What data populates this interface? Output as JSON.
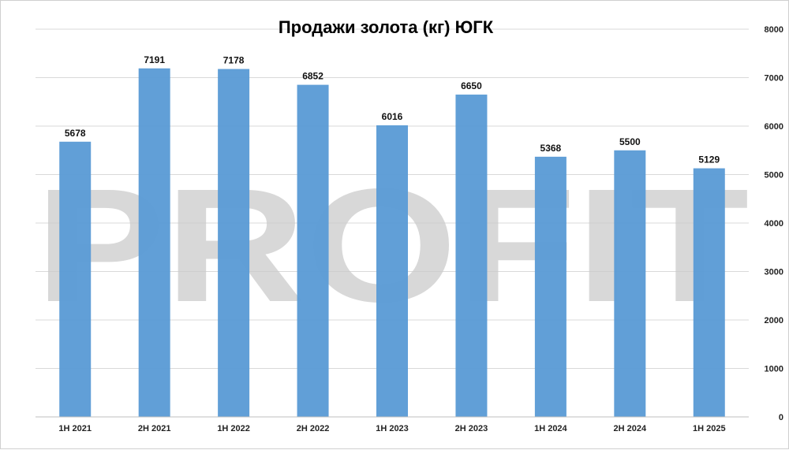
{
  "chart_data": {
    "type": "bar",
    "title": "Продажи золота (кг) ЮГК",
    "categories": [
      "1H 2021",
      "2H 2021",
      "1H 2022",
      "2H 2022",
      "1H 2023",
      "2H 2023",
      "1H 2024",
      "2H 2024",
      "1H 2025"
    ],
    "values": [
      5678,
      7191,
      7178,
      6852,
      6016,
      6650,
      5368,
      5500,
      5129
    ],
    "ylim": [
      0,
      8000
    ],
    "yticks": [
      0,
      1000,
      2000,
      3000,
      4000,
      5000,
      6000,
      7000,
      8000
    ],
    "y_axis_side": "right",
    "grid": true,
    "data_labels": true,
    "bar_color": "#5b9bd5",
    "grid_color": "#d9d9d9"
  },
  "watermark": "PROFIT"
}
